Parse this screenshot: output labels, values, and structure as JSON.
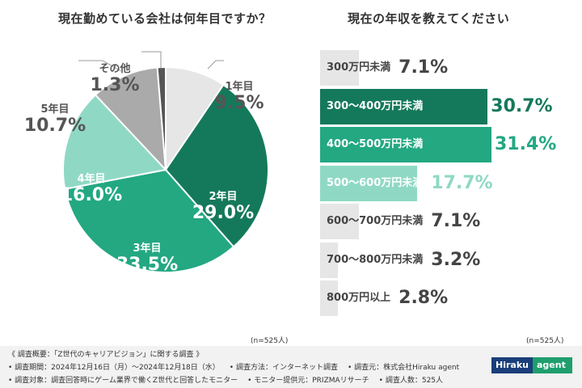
{
  "colors": {
    "pie": [
      "#e6e6e6",
      "#14795a",
      "#23a882",
      "#8fd9c4",
      "#aaaaaa",
      "#555555"
    ],
    "bars": [
      "#e6e6e6",
      "#14795a",
      "#23a882",
      "#8fd9c4",
      "#e6e6e6",
      "#e6e6e6",
      "#e6e6e6"
    ],
    "bar_values": [
      "#444444",
      "#14795a",
      "#23a882",
      "#8fd9c4",
      "#444444",
      "#444444",
      "#444444"
    ],
    "bar_text": [
      "#444444",
      "#ffffff",
      "#ffffff",
      "#ffffff",
      "#444444",
      "#444444",
      "#444444"
    ]
  },
  "chart_data": [
    {
      "type": "pie",
      "title": "現在勤めている会社は何年目ですか？",
      "categories": [
        "1年目",
        "2年目",
        "3年目",
        "4年目",
        "5年目",
        "その他"
      ],
      "values": [
        9.5,
        29.0,
        33.5,
        16.0,
        10.7,
        1.3
      ],
      "value_labels": [
        "9.5%",
        "29.0%",
        "33.5%",
        "16.0%",
        "10.7%",
        "1.3%"
      ],
      "n_note": "(n=525人)"
    },
    {
      "type": "bar",
      "orientation": "horizontal",
      "title": "現在の年収を教えてください",
      "categories": [
        "300万円未満",
        "300〜400万円未満",
        "400〜500万円未満",
        "500〜600万円未満",
        "600〜700万円未満",
        "700〜800万円未満",
        "800万円以上"
      ],
      "values": [
        7.1,
        30.7,
        31.4,
        17.7,
        7.1,
        3.2,
        2.8
      ],
      "value_labels": [
        "7.1%",
        "30.7%",
        "31.4%",
        "17.7%",
        "7.1%",
        "3.2%",
        "2.8%"
      ],
      "n_note": "(n=525人)"
    }
  ],
  "footer": {
    "line1": "《 調査概要：「Z世代のキャリアビジョン」に関する調査 》",
    "line2": [
      "• 調査期間：2024年12月16日（月）〜2024年12月18日（水）",
      "• 調査方法：インターネット調査",
      "• 調査元：株式会社Hiraku agent"
    ],
    "line3": [
      "• 調査対象：調査回答時にゲーム業界で働くZ世代と回答したモニター",
      "• モニター提供元：PRIZMAリサーチ",
      "• 調査人数：525人"
    ],
    "logo_left": "Hiraku",
    "logo_right": "agent"
  }
}
